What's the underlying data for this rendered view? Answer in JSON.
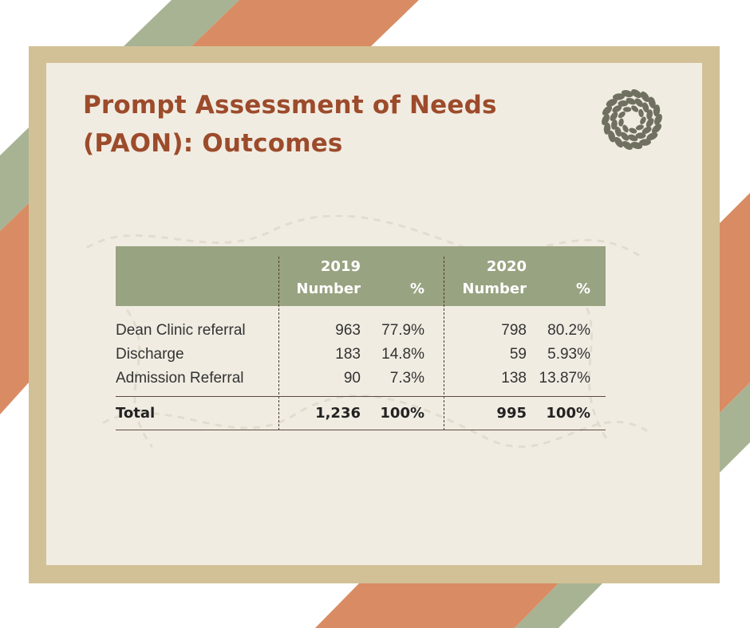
{
  "title": {
    "line1": "Prompt Assessment of Needs",
    "line2": "(PAON): Outcomes"
  },
  "colors": {
    "title": "#9c4b2b",
    "header_bg": "#98a381",
    "frame": "#d2c197",
    "card": "#f1ece2",
    "stripe_orange": "#d98c63",
    "stripe_green": "#a8b394"
  },
  "logo": {
    "icon": "leaf-wreath-icon"
  },
  "table": {
    "groups": [
      {
        "year": "2019",
        "number_label": "Number",
        "pct_label": "%"
      },
      {
        "year": "2020",
        "number_label": "Number",
        "pct_label": "%"
      }
    ],
    "rows": [
      {
        "label": "Dean Clinic referral",
        "n2019": "963",
        "p2019": "77.9%",
        "n2020": "798",
        "p2020": "80.2%"
      },
      {
        "label": "Discharge",
        "n2019": "183",
        "p2019": "14.8%",
        "n2020": "59",
        "p2020": "5.93%"
      },
      {
        "label": "Admission Referral",
        "n2019": "90",
        "p2019": "7.3%",
        "n2020": "138",
        "p2020": "13.87%"
      }
    ],
    "total": {
      "label": "Total",
      "n2019": "1,236",
      "p2019": "100%",
      "n2020": "995",
      "p2020": "100%"
    }
  }
}
